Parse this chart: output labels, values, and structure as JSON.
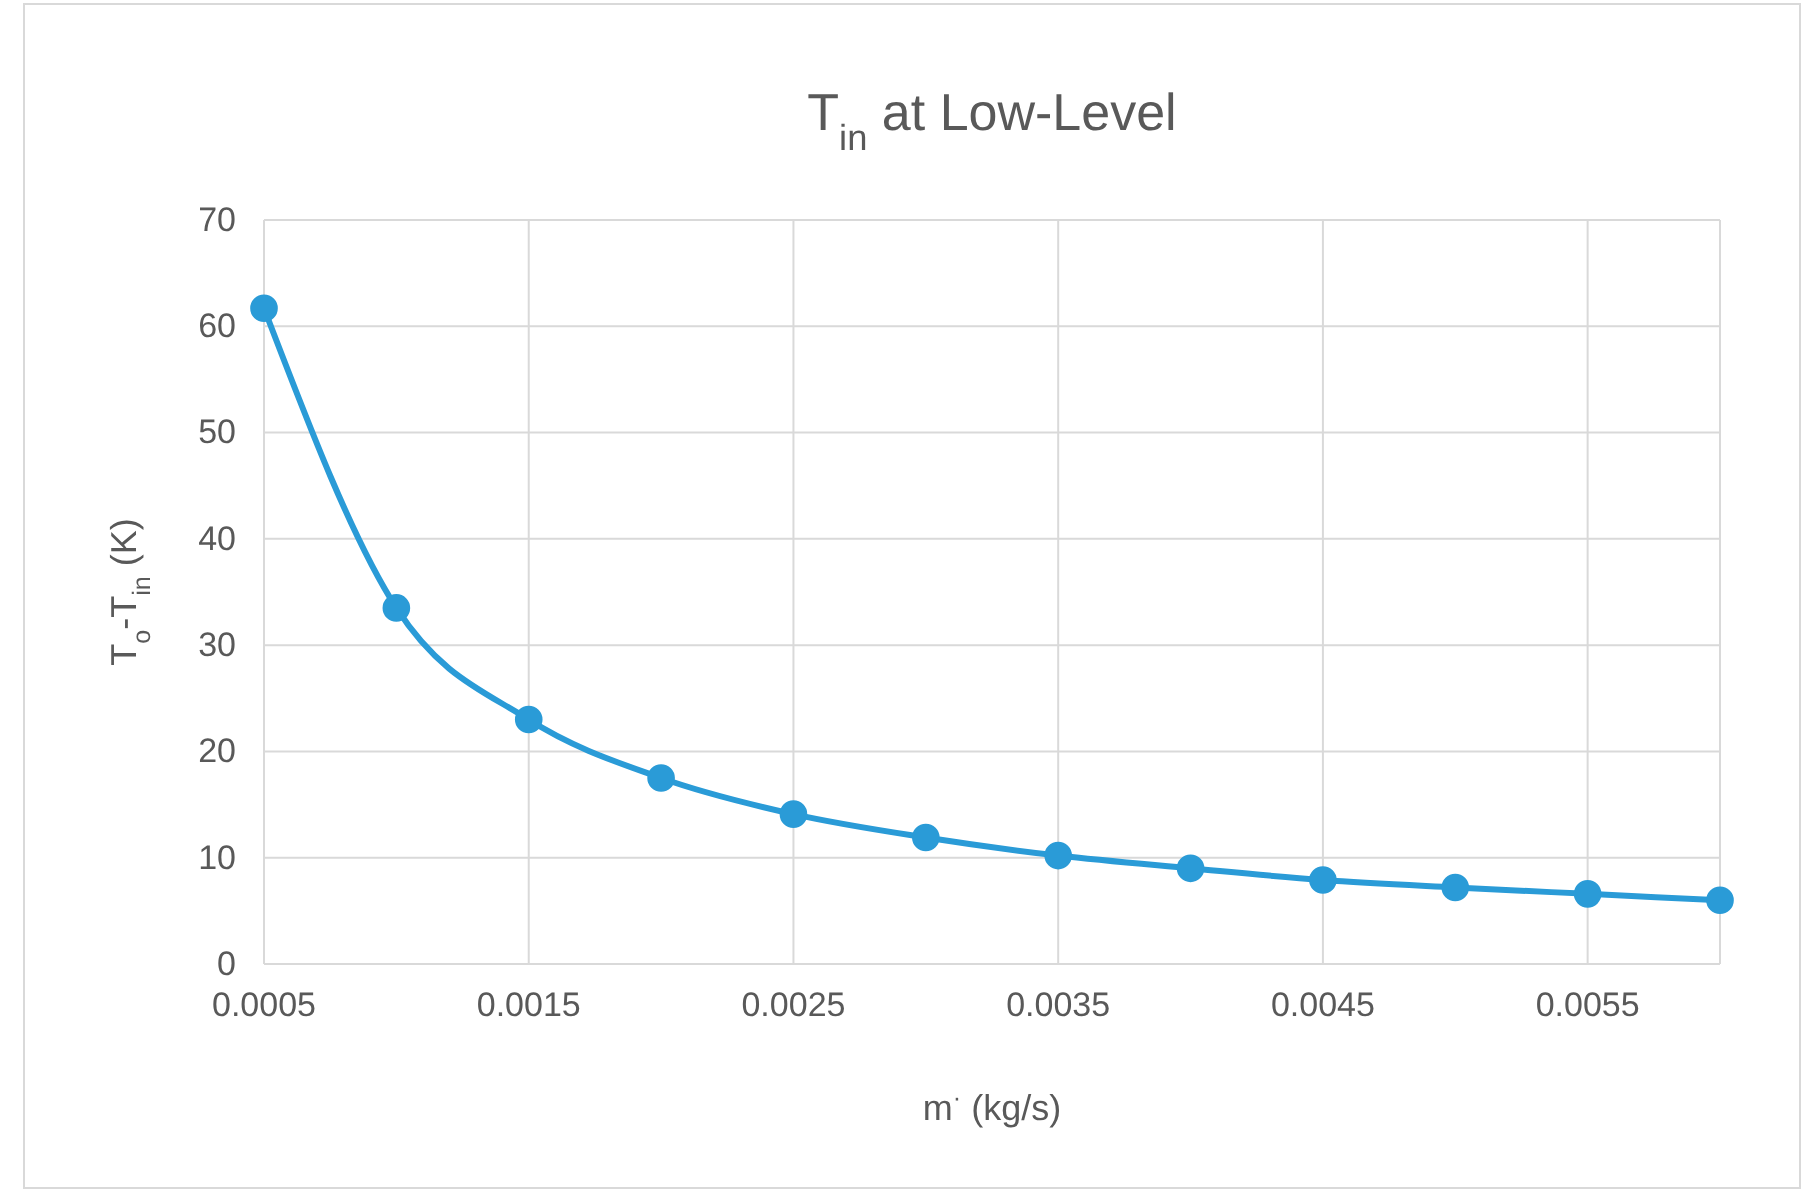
{
  "chart_data": {
    "type": "line",
    "title": "T$_{in}$ at Low-Level",
    "xlabel": "m$^{·}$ (kg/s)",
    "ylabel": "T$_{o}$-T$_{in}$ (K)",
    "x": [
      0.0005,
      0.001,
      0.0015,
      0.002,
      0.0025,
      0.003,
      0.0035,
      0.004,
      0.0045,
      0.005,
      0.0055,
      0.006
    ],
    "series": [
      {
        "color": "#2a9bd7",
        "values": [
          61.7,
          33.5,
          23.0,
          17.5,
          14.1,
          11.9,
          10.2,
          9.0,
          7.9,
          7.2,
          6.6,
          6.0
        ]
      }
    ],
    "xlim": [
      0.0005,
      0.006
    ],
    "xticks": [
      0.0005,
      0.0015,
      0.0025,
      0.0035,
      0.0045,
      0.0055
    ],
    "ylim": [
      0,
      70
    ],
    "yticks": [
      0,
      10,
      20,
      30,
      40,
      50,
      60,
      70
    ],
    "grid": true,
    "marker": "circle",
    "line_style": "solid"
  }
}
